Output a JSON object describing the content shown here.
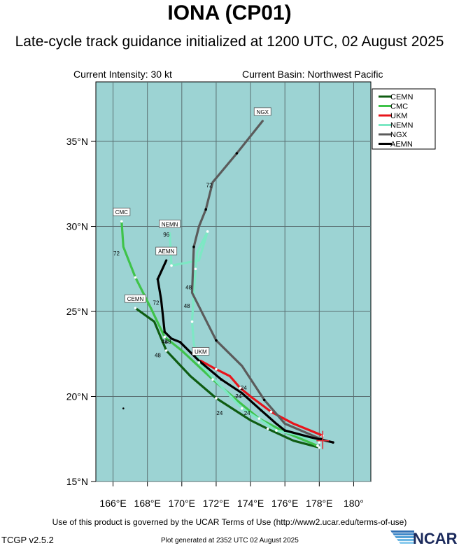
{
  "header": {
    "title": "IONA (CP01)",
    "subtitle": "Late-cycle track guidance initialized at 1200 UTC, 02 August 2025",
    "intensity": "Current Intensity: 30 kt",
    "basin": "Current Basin: Northwest Pacific"
  },
  "footer": {
    "terms": "Use of this product is governed by the UCAR Terms of Use (http://www2.ucar.edu/terms-of-use)",
    "version": "TCGP v2.5.2",
    "generated": "Plot generated at 2352 UTC   02 August 2025",
    "logo_text": "NCAR"
  },
  "colors": {
    "ocean": "#9cd3d3",
    "grid": "#5a6f72",
    "current_position": "#e0303a"
  },
  "chart_data": {
    "type": "line",
    "title": "IONA (CP01)",
    "xlim": [
      165,
      181
    ],
    "ylim": [
      15,
      38.5
    ],
    "x_ticks": [
      166,
      168,
      170,
      172,
      174,
      176,
      178,
      180
    ],
    "x_tick_labels": [
      "166°E",
      "168°E",
      "170°E",
      "172°E",
      "174°E",
      "176°E",
      "178°E",
      "180°"
    ],
    "y_ticks": [
      15,
      20,
      25,
      30,
      35
    ],
    "y_tick_labels": [
      "15°N",
      "20°N",
      "25°N",
      "30°N",
      "35°N"
    ],
    "grid": true,
    "legend_position": "top-right",
    "current_position": [
      178.2,
      17.4
    ],
    "stray_point": [
      166.6,
      19.3
    ],
    "series": [
      {
        "name": "CEMN",
        "color": "#0f5c12",
        "points": [
          [
            178.0,
            17.0
          ],
          [
            176.5,
            17.4
          ],
          [
            175.0,
            18.1
          ],
          [
            174.0,
            18.6
          ],
          [
            172.0,
            19.9
          ],
          [
            170.5,
            21.2
          ],
          [
            169.1,
            22.7
          ],
          [
            168.4,
            24.4
          ],
          [
            167.3,
            25.2
          ]
        ],
        "tau": [
          {
            "label": "24",
            "at": [
              172.2,
              18.9
            ]
          },
          {
            "label": "48",
            "at": [
              168.6,
              22.3
            ]
          }
        ],
        "end_label": "CEMN"
      },
      {
        "name": "CMC",
        "color": "#3fc34a",
        "points": [
          [
            177.9,
            17.1
          ],
          [
            176.0,
            17.9
          ],
          [
            174.5,
            18.7
          ],
          [
            173.3,
            19.7
          ],
          [
            171.8,
            21.0
          ],
          [
            170.0,
            22.7
          ],
          [
            169.0,
            23.5
          ],
          [
            168.2,
            25.2
          ],
          [
            167.3,
            27.0
          ],
          [
            166.6,
            28.8
          ],
          [
            166.5,
            30.3
          ]
        ],
        "tau": [
          {
            "label": "24",
            "at": [
              173.3,
              19.9
            ]
          },
          {
            "label": "48",
            "at": [
              169.2,
              23.1
            ]
          },
          {
            "label": "72",
            "at": [
              166.2,
              28.3
            ]
          }
        ],
        "end_label": "CMC"
      },
      {
        "name": "UKM",
        "color": "#e8141b",
        "points": [
          [
            178.2,
            17.7
          ],
          [
            176.5,
            18.4
          ],
          [
            175.2,
            19.1
          ],
          [
            174.0,
            20.0
          ],
          [
            173.4,
            20.5
          ],
          [
            172.8,
            21.2
          ],
          [
            172.0,
            21.6
          ],
          [
            171.1,
            22.1
          ]
        ],
        "tau": [
          {
            "label": "24",
            "at": [
              173.6,
              20.4
            ]
          }
        ],
        "end_label": "UKM"
      },
      {
        "name": "NEMN",
        "color": "#7de8c4",
        "points": [
          [
            178.0,
            17.3
          ],
          [
            176.5,
            17.8
          ],
          [
            175.5,
            18.0
          ],
          [
            174.6,
            18.6
          ],
          [
            173.5,
            19.3
          ],
          [
            172.1,
            20.8
          ],
          [
            171.0,
            22.0
          ],
          [
            170.7,
            23.1
          ],
          [
            170.6,
            24.4
          ],
          [
            170.7,
            26.1
          ],
          [
            170.8,
            27.5
          ],
          [
            170.9,
            28.5
          ],
          [
            171.5,
            29.7
          ],
          [
            171.0,
            28.0
          ],
          [
            169.4,
            27.7
          ],
          [
            169.3,
            29.6
          ]
        ],
        "tau": [
          {
            "label": "24",
            "at": [
              173.8,
              18.9
            ]
          },
          {
            "label": "48",
            "at": [
              170.4,
              26.3
            ]
          },
          {
            "label": "96",
            "at": [
              169.1,
              29.4
            ]
          }
        ],
        "end_label": "NEMN"
      },
      {
        "name": "NGX",
        "color": "#5b5b5b",
        "points": [
          [
            178.1,
            17.5
          ],
          [
            176.0,
            18.4
          ],
          [
            174.8,
            19.8
          ],
          [
            173.5,
            21.8
          ],
          [
            172.0,
            23.3
          ],
          [
            170.6,
            26.1
          ],
          [
            170.7,
            28.8
          ],
          [
            171.0,
            30.0
          ],
          [
            171.4,
            31.0
          ],
          [
            171.8,
            32.6
          ],
          [
            173.2,
            34.3
          ],
          [
            174.7,
            36.2
          ]
        ],
        "tau": [
          {
            "label": "48",
            "at": [
              170.3,
              25.2
            ]
          },
          {
            "label": "72",
            "at": [
              171.6,
              32.3
            ]
          }
        ],
        "end_label": "NGX"
      },
      {
        "name": "AEMN",
        "color": "#000000",
        "points": [
          [
            178.8,
            17.3
          ],
          [
            177.5,
            17.6
          ],
          [
            176.0,
            18.0
          ],
          [
            175.5,
            18.4
          ],
          [
            174.6,
            19.2
          ],
          [
            173.5,
            20.2
          ],
          [
            172.3,
            21.0
          ],
          [
            171.0,
            22.1
          ],
          [
            169.9,
            23.2
          ],
          [
            169.4,
            23.4
          ],
          [
            169.0,
            23.8
          ],
          [
            168.8,
            25.7
          ],
          [
            168.6,
            26.9
          ],
          [
            169.1,
            28.0
          ]
        ],
        "tau": [
          {
            "label": "48",
            "at": [
              169.0,
              23.1
            ]
          },
          {
            "label": "72",
            "at": [
              168.5,
              25.4
            ]
          }
        ],
        "end_label": "AEMN"
      }
    ]
  }
}
